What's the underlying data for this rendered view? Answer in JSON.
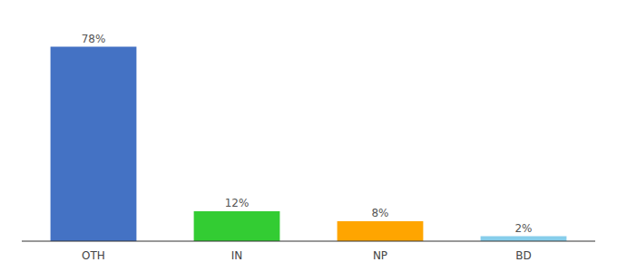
{
  "chart_data": {
    "type": "bar",
    "categories": [
      "OTH",
      "IN",
      "NP",
      "BD"
    ],
    "values": [
      78,
      12,
      8,
      2
    ],
    "value_labels": [
      "78%",
      "12%",
      "8%",
      "2%"
    ],
    "colors": [
      "#4472C4",
      "#33CC33",
      "#FFA500",
      "#87CEEB"
    ],
    "ylim": [
      0,
      88
    ],
    "data_labels": true,
    "tick_labels": "x",
    "grid": false
  }
}
